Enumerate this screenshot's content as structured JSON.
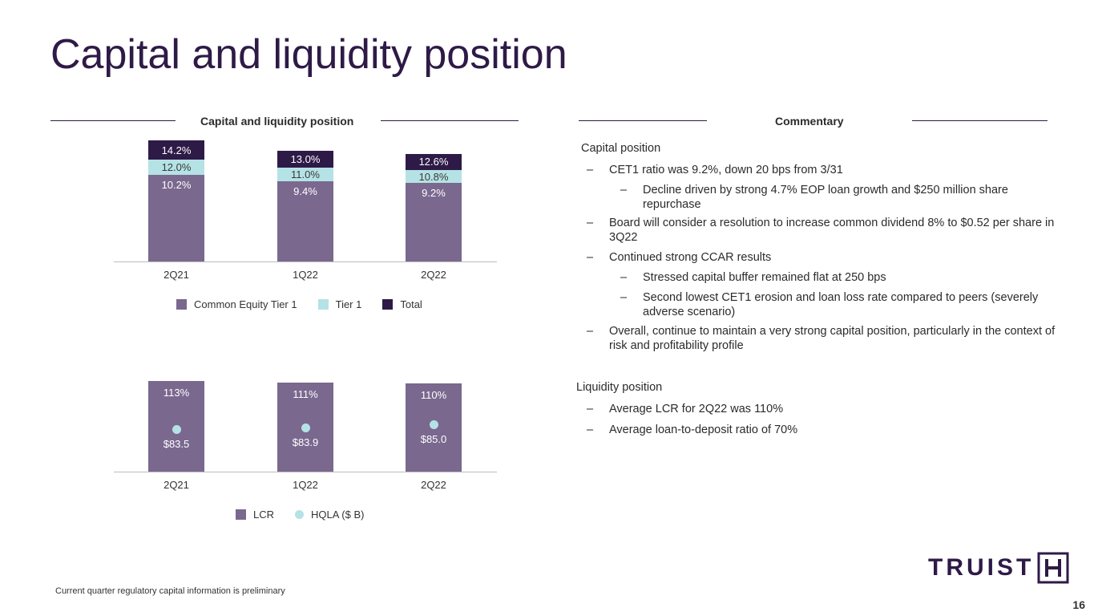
{
  "page": {
    "title": "Capital and liquidity position",
    "left_header": "Capital and liquidity position",
    "right_header": "Commentary",
    "footnote": "Current quarter regulatory capital information is preliminary",
    "page_number": "16",
    "logo_text": "TRUIST"
  },
  "colors": {
    "title": "#2e1a47",
    "cet1": "#7a688f",
    "tier1": "#b5e2e4",
    "total": "#2e1a47",
    "lcr": "#7a688f",
    "hqla": "#b5e2e4"
  },
  "chart_data": [
    {
      "type": "bar",
      "stacked": true,
      "categories": [
        "2Q21",
        "1Q22",
        "2Q22"
      ],
      "series": [
        {
          "name": "Common Equity Tier 1",
          "values": [
            10.2,
            9.4,
            9.2
          ],
          "labels": [
            "10.2%",
            "9.4%",
            "9.2%"
          ]
        },
        {
          "name": "Tier 1",
          "values": [
            12.0,
            11.0,
            10.8
          ],
          "labels": [
            "12.0%",
            "11.0%",
            "10.8%"
          ]
        },
        {
          "name": "Total",
          "values": [
            14.2,
            13.0,
            12.6
          ],
          "labels": [
            "14.2%",
            "13.0%",
            "12.6%"
          ]
        }
      ],
      "grid": false,
      "legend": "bottom"
    },
    {
      "type": "bar",
      "categories": [
        "2Q21",
        "1Q22",
        "2Q22"
      ],
      "series": [
        {
          "name": "LCR",
          "kind": "bar",
          "values": [
            113,
            111,
            110
          ],
          "labels": [
            "113%",
            "111%",
            "110%"
          ]
        },
        {
          "name": "HQLA ($ B)",
          "kind": "scatter",
          "values": [
            83.5,
            83.9,
            85.0
          ],
          "labels": [
            "$83.5",
            "$83.9",
            "$85.0"
          ]
        }
      ],
      "grid": false,
      "legend": "bottom"
    }
  ],
  "commentary": {
    "capital": {
      "heading": "Capital position",
      "b1": "CET1 ratio was 9.2%, down 20 bps from 3/31",
      "b1a": "Decline driven by strong 4.7% EOP loan growth and $250 million share repurchase",
      "b2": "Board will consider a resolution to increase common dividend 8% to $0.52 per share in 3Q22",
      "b3": "Continued strong CCAR results",
      "b3a": "Stressed capital buffer remained flat at 250 bps",
      "b3b": "Second lowest CET1 erosion and loan loss rate compared to peers (severely adverse scenario)",
      "b4": "Overall, continue to maintain a very strong capital position, particularly in the context of risk and profitability profile"
    },
    "liquidity": {
      "heading": "Liquidity position",
      "b1": "Average LCR for 2Q22 was 110%",
      "b2": "Average loan-to-deposit ratio of 70%"
    },
    "dash": "–"
  }
}
